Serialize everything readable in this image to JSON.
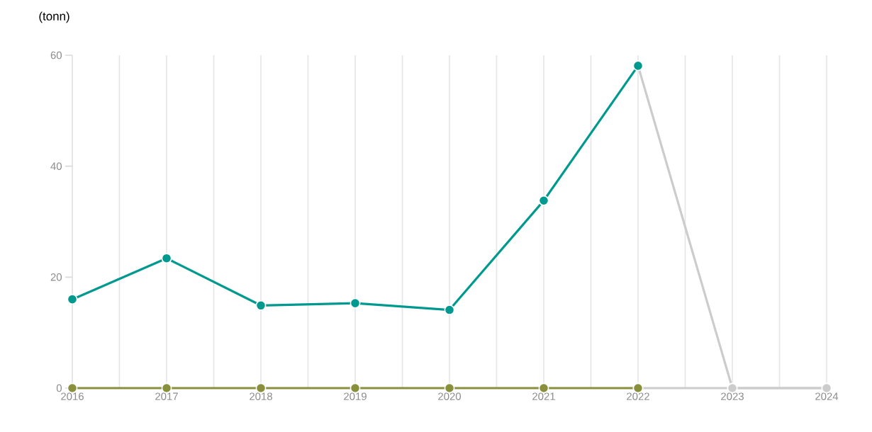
{
  "chart_data": {
    "type": "line",
    "ylabel": "(tonn)",
    "x": [
      2016,
      2017,
      2018,
      2019,
      2020,
      2021,
      2022,
      2023,
      2024
    ],
    "series": [
      {
        "color": "#00998f",
        "values": [
          16,
          23.4,
          14.9,
          15.3,
          14.1,
          33.8,
          58.1,
          null,
          null
        ]
      },
      {
        "color": "#cccccc",
        "values": [
          null,
          null,
          null,
          null,
          null,
          null,
          58.1,
          0,
          0
        ]
      },
      {
        "color": "#8a8f3c",
        "values": [
          0,
          0,
          0,
          0,
          0,
          0,
          0,
          null,
          null
        ]
      },
      {
        "color": "#cccccc",
        "values": [
          null,
          null,
          null,
          null,
          null,
          null,
          0,
          0,
          0
        ]
      }
    ],
    "xlim": [
      2016,
      2024
    ],
    "ylim": [
      0,
      60
    ],
    "xticks": [
      2016,
      {
        "value": 2016.5,
        "label": null
      },
      2017,
      {
        "value": 2017.5,
        "label": null
      },
      2018,
      {
        "value": 2018.5,
        "label": null
      },
      2019,
      {
        "value": 2019.5,
        "label": null
      },
      2020,
      {
        "value": 2020.5,
        "label": null
      },
      2021,
      {
        "value": 2021.5,
        "label": null
      },
      2022,
      {
        "value": 2022.5,
        "label": null
      },
      2023,
      {
        "value": 2023.5,
        "label": null
      },
      2024
    ],
    "yticks": [
      0,
      20,
      40,
      60
    ],
    "grid": "x",
    "marker": "circle"
  }
}
